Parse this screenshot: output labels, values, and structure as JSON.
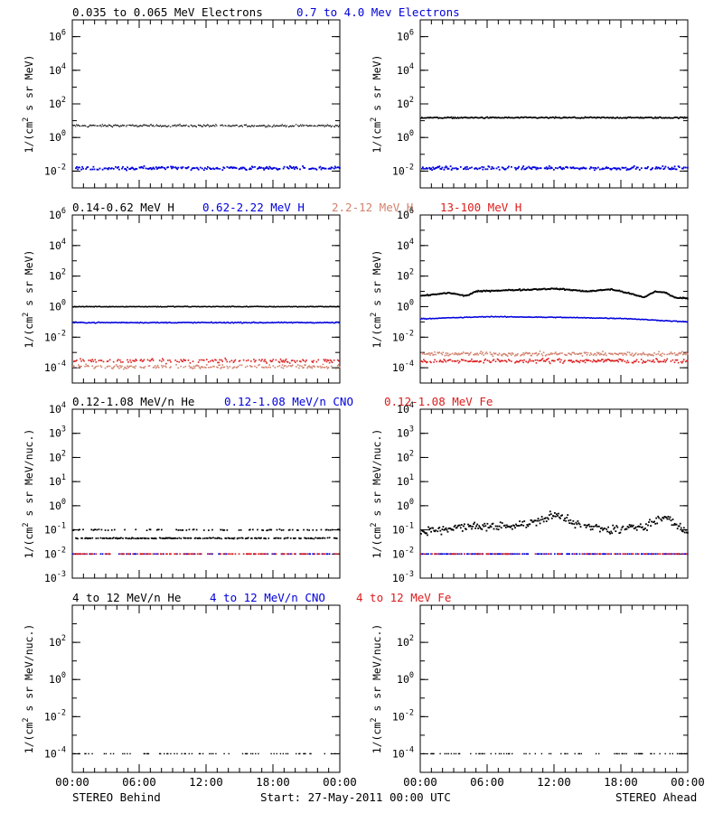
{
  "colors": {
    "black": "#000000",
    "blue": "#0000dd",
    "salmon": "#d2826e",
    "red": "#dd1c1c"
  },
  "panel_titles": {
    "electrons": [
      {
        "text": "0.035 to 0.065 MeV Electrons",
        "color": "#000000"
      },
      {
        "text": "0.7 to 4.0 Mev Electrons",
        "color": "#0000dd"
      }
    ],
    "protons": [
      {
        "text": "0.14-0.62 MeV H",
        "color": "#000000"
      },
      {
        "text": "0.62-2.22 MeV H",
        "color": "#0000dd"
      },
      {
        "text": "2.2-12 MeV H",
        "color": "#d2826e"
      },
      {
        "text": "13-100 MeV H",
        "color": "#dd1c1c"
      }
    ],
    "heavy_low": [
      {
        "text": "0.12-1.08 MeV/n He",
        "color": "#000000"
      },
      {
        "text": "0.12-1.08 MeV/n CNO",
        "color": "#0000dd"
      },
      {
        "text": "0.12-1.08 MeV Fe",
        "color": "#dd1c1c"
      }
    ],
    "heavy_high": [
      {
        "text": "4 to 12 MeV/n He",
        "color": "#000000"
      },
      {
        "text": "4 to 12 MeV/n CNO",
        "color": "#0000dd"
      },
      {
        "text": "4 to 12 MeV Fe",
        "color": "#dd1c1c"
      }
    ]
  },
  "ylabels": {
    "electrons": "1/(cm2 s sr MeV)",
    "protons": "1/(cm2 s sr MeV)",
    "heavy_low": "1/(cm2 s sr MeV/nuc.)",
    "heavy_high": "1/(cm2 s sr MeV/nuc.)"
  },
  "footer": {
    "left": "STEREO Behind",
    "center": "Start: 27-May-2011 00:00 UTC",
    "right": "STEREO Ahead"
  },
  "chart_data": [
    {
      "type": "scatter",
      "row": 0,
      "col": 0,
      "spacecraft": "STEREO Behind",
      "x_range_hours": [
        0,
        24
      ],
      "y_scale": "log",
      "ylim": [
        0.001,
        10000000
      ],
      "y_ticks": [
        {
          "v": 0.01,
          "mant": "10",
          "exp": "-2"
        },
        {
          "v": 1,
          "mant": "10",
          "exp": "0"
        },
        {
          "v": 100,
          "mant": "10",
          "exp": "2"
        },
        {
          "v": 10000,
          "mant": "10",
          "exp": "4"
        },
        {
          "v": 1000000,
          "mant": "10",
          "exp": "6"
        }
      ],
      "series": [
        {
          "color": "#000000",
          "level": 5,
          "jitter": 0.1,
          "density": 0.9,
          "size": 1.2
        },
        {
          "color": "#0000dd",
          "level": 0.015,
          "jitter": 0.15,
          "density": 0.75,
          "size": 1.8
        }
      ]
    },
    {
      "type": "scatter",
      "row": 0,
      "col": 1,
      "spacecraft": "STEREO Ahead",
      "x_range_hours": [
        0,
        24
      ],
      "y_scale": "log",
      "ylim": [
        0.001,
        10000000
      ],
      "y_ticks": [
        {
          "v": 0.01,
          "mant": "10",
          "exp": "-2"
        },
        {
          "v": 1,
          "mant": "10",
          "exp": "0"
        },
        {
          "v": 100,
          "mant": "10",
          "exp": "2"
        },
        {
          "v": 10000,
          "mant": "10",
          "exp": "4"
        },
        {
          "v": 1000000,
          "mant": "10",
          "exp": "6"
        }
      ],
      "series": [
        {
          "color": "#000000",
          "level": 15,
          "jitter": 0.06,
          "density": 1.0,
          "size": 1.6
        },
        {
          "color": "#0000dd",
          "level": 0.015,
          "jitter": 0.15,
          "density": 0.75,
          "size": 1.8
        }
      ]
    },
    {
      "type": "scatter",
      "row": 1,
      "col": 0,
      "spacecraft": "STEREO Behind",
      "x_range_hours": [
        0,
        24
      ],
      "y_scale": "log",
      "ylim": [
        1e-05,
        1000000
      ],
      "y_ticks": [
        {
          "v": 0.0001,
          "mant": "10",
          "exp": "-4"
        },
        {
          "v": 0.01,
          "mant": "10",
          "exp": "-2"
        },
        {
          "v": 1,
          "mant": "10",
          "exp": "0"
        },
        {
          "v": 100,
          "mant": "10",
          "exp": "2"
        },
        {
          "v": 10000,
          "mant": "10",
          "exp": "4"
        },
        {
          "v": 1000000,
          "mant": "10",
          "exp": "6"
        }
      ],
      "series": [
        {
          "color": "#000000",
          "level": 1.0,
          "jitter": 0.04,
          "density": 1.0,
          "size": 1.5
        },
        {
          "color": "#0000dd",
          "level": 0.09,
          "jitter": 0.05,
          "density": 1.0,
          "size": 1.5
        },
        {
          "color": "#d2826e",
          "level": 0.00012,
          "jitter": 0.2,
          "density": 0.6,
          "size": 1.6
        },
        {
          "color": "#dd1c1c",
          "level": 0.00028,
          "jitter": 0.2,
          "density": 0.55,
          "size": 1.6
        }
      ]
    },
    {
      "type": "scatter",
      "row": 1,
      "col": 1,
      "spacecraft": "STEREO Ahead",
      "x_range_hours": [
        0,
        24
      ],
      "y_scale": "log",
      "ylim": [
        1e-05,
        1000000
      ],
      "y_ticks": [
        {
          "v": 0.0001,
          "mant": "10",
          "exp": "-4"
        },
        {
          "v": 0.01,
          "mant": "10",
          "exp": "-2"
        },
        {
          "v": 1,
          "mant": "10",
          "exp": "0"
        },
        {
          "v": 100,
          "mant": "10",
          "exp": "2"
        },
        {
          "v": 10000,
          "mant": "10",
          "exp": "4"
        },
        {
          "v": 1000000,
          "mant": "10",
          "exp": "6"
        }
      ],
      "series": [
        {
          "color": "#000000",
          "level": 10,
          "jitter": 0.06,
          "density": 1.0,
          "size": 1.8,
          "profile": [
            [
              0,
              5
            ],
            [
              2.5,
              8
            ],
            [
              4,
              5
            ],
            [
              5,
              10
            ],
            [
              8,
              12
            ],
            [
              12,
              15
            ],
            [
              15,
              10
            ],
            [
              17,
              14
            ],
            [
              18.5,
              8
            ],
            [
              20,
              4
            ],
            [
              21,
              10
            ],
            [
              22,
              8
            ],
            [
              22.7,
              4
            ],
            [
              24,
              3.5
            ]
          ]
        },
        {
          "color": "#0000dd",
          "level": 0.18,
          "jitter": 0.04,
          "density": 1.0,
          "size": 1.5,
          "profile": [
            [
              0,
              0.16
            ],
            [
              6,
              0.22
            ],
            [
              12,
              0.2
            ],
            [
              18,
              0.17
            ],
            [
              24,
              0.1
            ]
          ]
        },
        {
          "color": "#d2826e",
          "level": 0.0008,
          "jitter": 0.2,
          "density": 0.85,
          "size": 1.6
        },
        {
          "color": "#dd1c1c",
          "level": 0.00028,
          "jitter": 0.2,
          "density": 0.75,
          "size": 1.6
        }
      ]
    },
    {
      "type": "scatter",
      "row": 2,
      "col": 0,
      "spacecraft": "STEREO Behind",
      "x_range_hours": [
        0,
        24
      ],
      "y_scale": "log",
      "ylim": [
        0.001,
        10000
      ],
      "y_ticks": [
        {
          "v": 0.001,
          "mant": "10",
          "exp": "-3"
        },
        {
          "v": 0.01,
          "mant": "10",
          "exp": "-2"
        },
        {
          "v": 0.1,
          "mant": "10",
          "exp": "-1"
        },
        {
          "v": 1,
          "mant": "10",
          "exp": "0"
        },
        {
          "v": 10,
          "mant": "10",
          "exp": "1"
        },
        {
          "v": 100,
          "mant": "10",
          "exp": "2"
        },
        {
          "v": 1000,
          "mant": "10",
          "exp": "3"
        },
        {
          "v": 10000,
          "mant": "10",
          "exp": "4"
        }
      ],
      "series": [
        {
          "color": "#000000",
          "level": 0.045,
          "jitter": 0.03,
          "density": 0.9,
          "size": 1.7,
          "discrete_high": 0.1,
          "high_frac": 0.35
        },
        {
          "color": "#0000dd",
          "level": 0.01,
          "jitter": 0.0,
          "density": 0.25,
          "size": 1.7
        },
        {
          "color": "#dd1c1c",
          "level": 0.01,
          "jitter": 0.0,
          "density": 0.35,
          "size": 1.7
        }
      ]
    },
    {
      "type": "scatter",
      "row": 2,
      "col": 1,
      "spacecraft": "STEREO Ahead",
      "x_range_hours": [
        0,
        24
      ],
      "y_scale": "log",
      "ylim": [
        0.001,
        10000
      ],
      "y_ticks": [
        {
          "v": 0.001,
          "mant": "10",
          "exp": "-3"
        },
        {
          "v": 0.01,
          "mant": "10",
          "exp": "-2"
        },
        {
          "v": 0.1,
          "mant": "10",
          "exp": "-1"
        },
        {
          "v": 1,
          "mant": "10",
          "exp": "0"
        },
        {
          "v": 10,
          "mant": "10",
          "exp": "1"
        },
        {
          "v": 100,
          "mant": "10",
          "exp": "2"
        },
        {
          "v": 1000,
          "mant": "10",
          "exp": "3"
        },
        {
          "v": 10000,
          "mant": "10",
          "exp": "4"
        }
      ],
      "series": [
        {
          "color": "#000000",
          "level": 0.15,
          "jitter": 0.28,
          "density": 0.95,
          "size": 1.8,
          "profile": [
            [
              0,
              0.08
            ],
            [
              3,
              0.12
            ],
            [
              6,
              0.14
            ],
            [
              8,
              0.14
            ],
            [
              10,
              0.2
            ],
            [
              12,
              0.4
            ],
            [
              13,
              0.3
            ],
            [
              15,
              0.12
            ],
            [
              18,
              0.1
            ],
            [
              20,
              0.15
            ],
            [
              22,
              0.35
            ],
            [
              23,
              0.15
            ],
            [
              24,
              0.08
            ]
          ]
        },
        {
          "color": "#0000dd",
          "level": 0.01,
          "jitter": 0.0,
          "density": 0.45,
          "size": 1.7
        },
        {
          "color": "#dd1c1c",
          "level": 0.01,
          "jitter": 0.0,
          "density": 0.25,
          "size": 1.7
        }
      ]
    },
    {
      "type": "scatter",
      "row": 3,
      "col": 0,
      "spacecraft": "STEREO Behind",
      "x_range_hours": [
        0,
        24
      ],
      "y_scale": "log",
      "ylim": [
        1e-05,
        10000
      ],
      "y_ticks": [
        {
          "v": 0.0001,
          "mant": "10",
          "exp": "-4"
        },
        {
          "v": 0.01,
          "mant": "10",
          "exp": "-2"
        },
        {
          "v": 1,
          "mant": "10",
          "exp": "0"
        },
        {
          "v": 100,
          "mant": "10",
          "exp": "2"
        }
      ],
      "series": [
        {
          "color": "#000000",
          "level": 0.0001,
          "jitter": 0.0,
          "density": 0.22,
          "size": 1.4
        }
      ]
    },
    {
      "type": "scatter",
      "row": 3,
      "col": 1,
      "spacecraft": "STEREO Ahead",
      "x_range_hours": [
        0,
        24
      ],
      "y_scale": "log",
      "ylim": [
        1e-05,
        10000
      ],
      "y_ticks": [
        {
          "v": 0.0001,
          "mant": "10",
          "exp": "-4"
        },
        {
          "v": 0.01,
          "mant": "10",
          "exp": "-2"
        },
        {
          "v": 1,
          "mant": "10",
          "exp": "0"
        },
        {
          "v": 100,
          "mant": "10",
          "exp": "2"
        }
      ],
      "series": [
        {
          "color": "#000000",
          "level": 0.0001,
          "jitter": 0.0,
          "density": 0.28,
          "size": 1.4
        }
      ]
    }
  ],
  "x_tick_labels": [
    "00:00",
    "06:00",
    "12:00",
    "18:00",
    "00:00"
  ]
}
